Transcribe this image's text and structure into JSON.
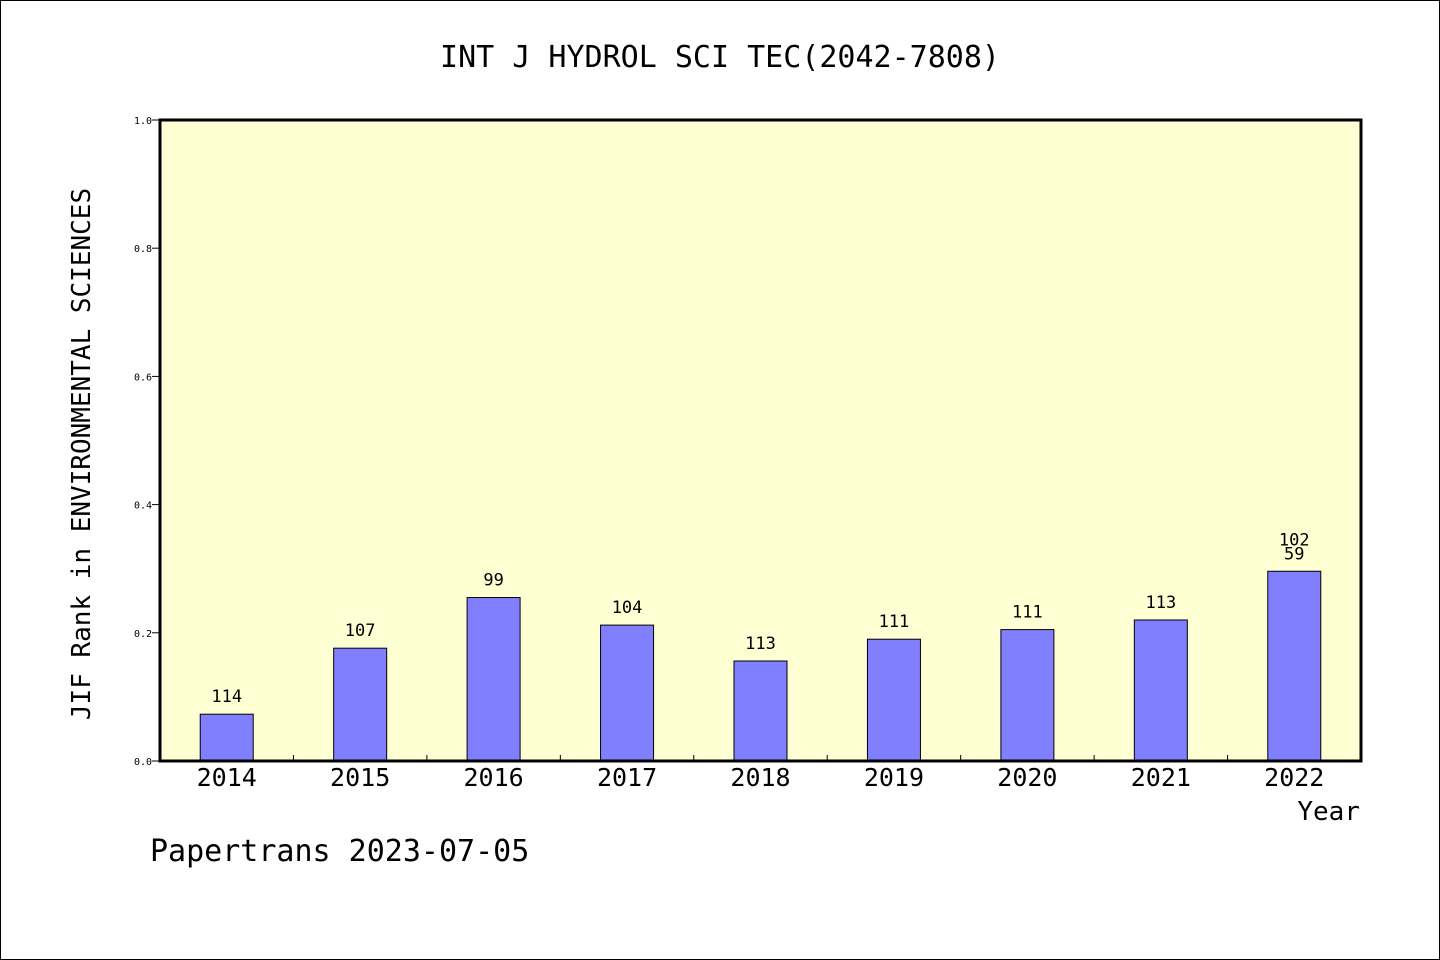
{
  "chart_data": {
    "type": "bar",
    "title": "INT J HYDROL SCI TEC(2042-7808)",
    "xlabel": "Year",
    "ylabel": "JIF Rank in ENVIRONMENTAL SCIENCES",
    "ylim": [
      0,
      1.0
    ],
    "yticks": [
      "0.0",
      "0.2",
      "0.4",
      "0.6",
      "0.8",
      "1.0"
    ],
    "grid": false,
    "categories": [
      "2014",
      "2015",
      "2016",
      "2017",
      "2018",
      "2019",
      "2020",
      "2021",
      "2022"
    ],
    "values": [
      0.073,
      0.176,
      0.255,
      0.212,
      0.156,
      0.19,
      0.205,
      0.22,
      0.296
    ],
    "data_labels": [
      "114",
      "107",
      "99",
      "104",
      "113",
      "111",
      "111",
      "113",
      "59"
    ],
    "extra_labels": [
      "",
      "",
      "",
      "",
      "",
      "",
      "",
      "",
      "102"
    ],
    "colors": {
      "plot_bg": "#ffffd4",
      "bar_fill": "#8080ff",
      "bar_stroke": "#000000"
    }
  },
  "footer": {
    "text": "Papertrans 2023-07-05"
  }
}
